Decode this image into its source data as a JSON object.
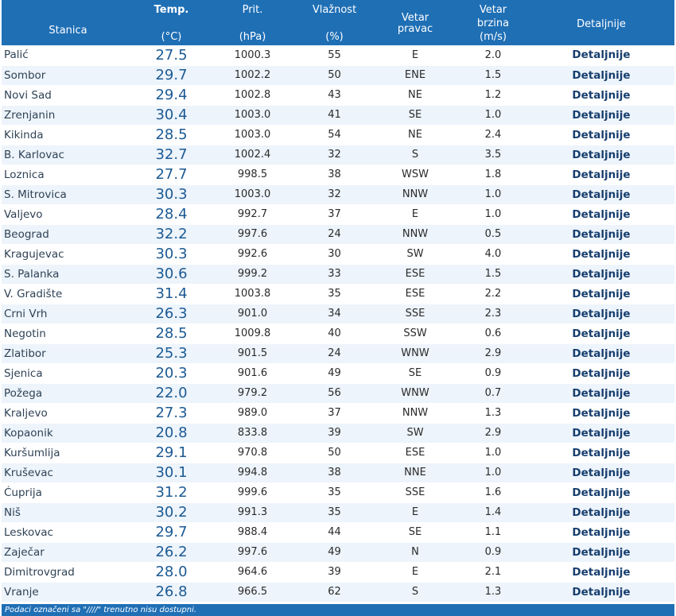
{
  "headers": {
    "station": "Stanica",
    "temp": "Temp.",
    "temp_unit": "(°C)",
    "pressure": "Prit.",
    "pressure_unit": "(hPa)",
    "humidity": "Vlažnost",
    "humidity_unit": "(%)",
    "wind_dir_1": "Vetar",
    "wind_dir_2": "pravac",
    "wind_speed_1": "Vetar",
    "wind_speed_2": "brzina",
    "wind_speed_unit": "(m/s)",
    "details": "Detaljnije"
  },
  "rows": [
    {
      "station": "Palić",
      "temp": "27.5",
      "pressure": "1000.3",
      "humidity": "55",
      "wind_dir": "E",
      "wind_speed": "2.0",
      "details": "Detaljnije"
    },
    {
      "station": "Sombor",
      "temp": "29.7",
      "pressure": "1002.2",
      "humidity": "50",
      "wind_dir": "ENE",
      "wind_speed": "1.5",
      "details": "Detaljnije"
    },
    {
      "station": "Novi Sad",
      "temp": "29.4",
      "pressure": "1002.8",
      "humidity": "43",
      "wind_dir": "NE",
      "wind_speed": "1.2",
      "details": "Detaljnije"
    },
    {
      "station": "Zrenjanin",
      "temp": "30.4",
      "pressure": "1003.0",
      "humidity": "41",
      "wind_dir": "SE",
      "wind_speed": "1.0",
      "details": "Detaljnije"
    },
    {
      "station": "Kikinda",
      "temp": "28.5",
      "pressure": "1003.0",
      "humidity": "54",
      "wind_dir": "NE",
      "wind_speed": "2.4",
      "details": "Detaljnije"
    },
    {
      "station": "B. Karlovac",
      "temp": "32.7",
      "pressure": "1002.4",
      "humidity": "32",
      "wind_dir": "S",
      "wind_speed": "3.5",
      "details": "Detaljnije"
    },
    {
      "station": "Loznica",
      "temp": "27.7",
      "pressure": "998.5",
      "humidity": "38",
      "wind_dir": "WSW",
      "wind_speed": "1.8",
      "details": "Detaljnije"
    },
    {
      "station": "S. Mitrovica",
      "temp": "30.3",
      "pressure": "1003.0",
      "humidity": "32",
      "wind_dir": "NNW",
      "wind_speed": "1.0",
      "details": "Detaljnije"
    },
    {
      "station": "Valjevo",
      "temp": "28.4",
      "pressure": "992.7",
      "humidity": "37",
      "wind_dir": "E",
      "wind_speed": "1.0",
      "details": "Detaljnije"
    },
    {
      "station": "Beograd",
      "temp": "32.2",
      "pressure": "997.6",
      "humidity": "24",
      "wind_dir": "NNW",
      "wind_speed": "0.5",
      "details": "Detaljnije"
    },
    {
      "station": "Kragujevac",
      "temp": "30.3",
      "pressure": "992.6",
      "humidity": "30",
      "wind_dir": "SW",
      "wind_speed": "4.0",
      "details": "Detaljnije"
    },
    {
      "station": "S. Palanka",
      "temp": "30.6",
      "pressure": "999.2",
      "humidity": "33",
      "wind_dir": "ESE",
      "wind_speed": "1.5",
      "details": "Detaljnije"
    },
    {
      "station": "V. Gradište",
      "temp": "31.4",
      "pressure": "1003.8",
      "humidity": "35",
      "wind_dir": "ESE",
      "wind_speed": "2.2",
      "details": "Detaljnije"
    },
    {
      "station": "Crni Vrh",
      "temp": "26.3",
      "pressure": "901.0",
      "humidity": "34",
      "wind_dir": "SSE",
      "wind_speed": "2.3",
      "details": "Detaljnije"
    },
    {
      "station": "Negotin",
      "temp": "28.5",
      "pressure": "1009.8",
      "humidity": "40",
      "wind_dir": "SSW",
      "wind_speed": "0.6",
      "details": "Detaljnije"
    },
    {
      "station": "Zlatibor",
      "temp": "25.3",
      "pressure": "901.5",
      "humidity": "24",
      "wind_dir": "WNW",
      "wind_speed": "2.9",
      "details": "Detaljnije"
    },
    {
      "station": "Sjenica",
      "temp": "20.3",
      "pressure": "901.6",
      "humidity": "49",
      "wind_dir": "SE",
      "wind_speed": "0.9",
      "details": "Detaljnije"
    },
    {
      "station": "Požega",
      "temp": "22.0",
      "pressure": "979.2",
      "humidity": "56",
      "wind_dir": "WNW",
      "wind_speed": "0.7",
      "details": "Detaljnije"
    },
    {
      "station": "Kraljevo",
      "temp": "27.3",
      "pressure": "989.0",
      "humidity": "37",
      "wind_dir": "NNW",
      "wind_speed": "1.3",
      "details": "Detaljnije"
    },
    {
      "station": "Kopaonik",
      "temp": "20.8",
      "pressure": "833.8",
      "humidity": "39",
      "wind_dir": "SW",
      "wind_speed": "2.9",
      "details": "Detaljnije"
    },
    {
      "station": "Kuršumlija",
      "temp": "29.1",
      "pressure": "970.8",
      "humidity": "50",
      "wind_dir": "ESE",
      "wind_speed": "1.0",
      "details": "Detaljnije"
    },
    {
      "station": "Kruševac",
      "temp": "30.1",
      "pressure": "994.8",
      "humidity": "38",
      "wind_dir": "NNE",
      "wind_speed": "1.0",
      "details": "Detaljnije"
    },
    {
      "station": "Ćuprija",
      "temp": "31.2",
      "pressure": "999.6",
      "humidity": "35",
      "wind_dir": "SSE",
      "wind_speed": "1.6",
      "details": "Detaljnije"
    },
    {
      "station": "Niš",
      "temp": "30.2",
      "pressure": "991.3",
      "humidity": "35",
      "wind_dir": "E",
      "wind_speed": "1.4",
      "details": "Detaljnije"
    },
    {
      "station": "Leskovac",
      "temp": "29.7",
      "pressure": "988.4",
      "humidity": "44",
      "wind_dir": "SE",
      "wind_speed": "1.1",
      "details": "Detaljnije"
    },
    {
      "station": "Zaječar",
      "temp": "26.2",
      "pressure": "997.6",
      "humidity": "49",
      "wind_dir": "N",
      "wind_speed": "0.9",
      "details": "Detaljnije"
    },
    {
      "station": "Dimitrovgrad",
      "temp": "28.0",
      "pressure": "964.6",
      "humidity": "39",
      "wind_dir": "E",
      "wind_speed": "2.1",
      "details": "Detaljnije"
    },
    {
      "station": "Vranje",
      "temp": "26.8",
      "pressure": "966.5",
      "humidity": "62",
      "wind_dir": "S",
      "wind_speed": "1.3",
      "details": "Detaljnije"
    }
  ],
  "footnote": "Podaci označeni sa \"////\" trenutno nisu dostupni.",
  "colors": {
    "header_bg": "#1f6fb5",
    "row_alt": "#edf4fb",
    "temp_text": "#1c5a93",
    "link_text": "#173e6e"
  }
}
